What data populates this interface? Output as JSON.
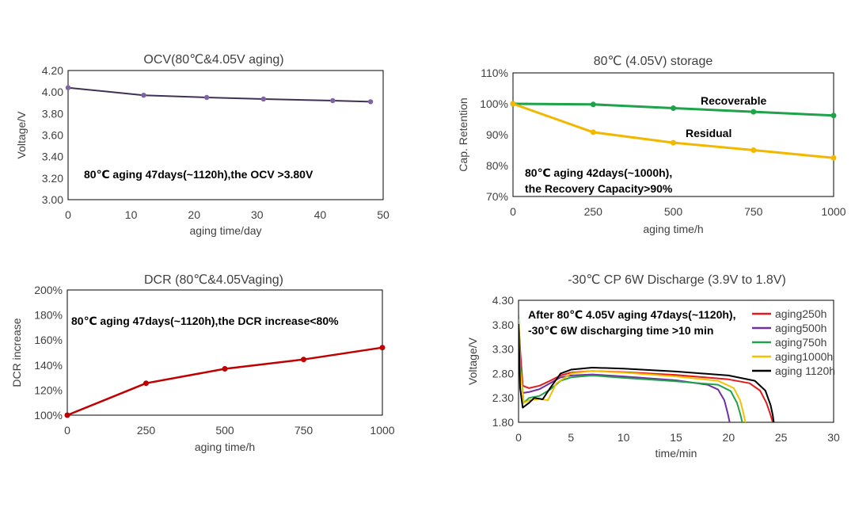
{
  "colors": {
    "ocv": "#403152",
    "ocv_marker": "#8064A2",
    "recoverable": "#1FA34A",
    "residual": "#F2B800",
    "dcr": "#C00000",
    "aging250h": "#E41A1C",
    "aging500h": "#7030A0",
    "aging750h": "#1FA34A",
    "aging1000h": "#F2C200",
    "aging1120h": "#000000"
  },
  "chart_data": [
    {
      "id": "ocv",
      "type": "line",
      "title": "OCV(80℃&4.05V aging)",
      "xlabel": "aging time/day",
      "ylabel": "Voltage/V",
      "xlim": [
        0,
        50
      ],
      "ylim": [
        3.0,
        4.2
      ],
      "xticks": [
        "0",
        "10",
        "20",
        "30",
        "40",
        "50"
      ],
      "yticks": [
        "3.00",
        "3.20",
        "3.40",
        "3.60",
        "3.80",
        "4.00",
        "4.20"
      ],
      "annotation": "80℃ aging 47days(~1120h),the OCV >3.80V",
      "series": [
        {
          "x": [
            0,
            12,
            22,
            31,
            42,
            48
          ],
          "y": [
            4.04,
            3.97,
            3.95,
            3.935,
            3.92,
            3.91
          ]
        }
      ]
    },
    {
      "id": "storage",
      "type": "line",
      "title": "80℃ (4.05V) storage",
      "xlabel": "aging time/h",
      "ylabel": "Cap. Retention",
      "xlim": [
        0,
        1000
      ],
      "ylim": [
        70,
        110
      ],
      "xticks": [
        "0",
        "250",
        "500",
        "750",
        "1000"
      ],
      "yticks": [
        "70%",
        "80%",
        "90%",
        "100%",
        "110%"
      ],
      "annotation_lines": [
        "80℃ aging 42days(~1000h),",
        "the Recovery Capacity>90%"
      ],
      "series": [
        {
          "name": "Recoverable",
          "x": [
            0,
            250,
            500,
            750,
            1000
          ],
          "y": [
            100,
            99.8,
            98.6,
            97.4,
            96.2
          ]
        },
        {
          "name": "Residual",
          "x": [
            0,
            250,
            500,
            750,
            1000
          ],
          "y": [
            100,
            90.8,
            87.4,
            85.0,
            82.5
          ]
        }
      ]
    },
    {
      "id": "dcr",
      "type": "line",
      "title": "DCR (80℃&4.05Vaging)",
      "xlabel": "aging time/h",
      "ylabel": "DCR increase",
      "xlim": [
        0,
        1000
      ],
      "ylim": [
        100,
        200
      ],
      "xticks": [
        "0",
        "250",
        "500",
        "750",
        "1000"
      ],
      "yticks": [
        "100%",
        "120%",
        "140%",
        "160%",
        "180%",
        "200%"
      ],
      "annotation": "80℃ aging 47days(~1120h),the DCR increase<80%",
      "series": [
        {
          "x": [
            0,
            250,
            500,
            750,
            1000
          ],
          "y": [
            100,
            125.5,
            137,
            144.5,
            154
          ]
        }
      ]
    },
    {
      "id": "discharge",
      "type": "line",
      "title": "-30℃ CP 6W Discharge (3.9V to 1.8V)",
      "xlabel": "time/min",
      "ylabel": "Voltage/V",
      "xlim": [
        0,
        30
      ],
      "ylim": [
        1.8,
        4.3
      ],
      "xticks": [
        "0",
        "5",
        "10",
        "15",
        "20",
        "25",
        "30"
      ],
      "yticks": [
        "1.80",
        "2.30",
        "2.80",
        "3.30",
        "3.80",
        "4.30"
      ],
      "annotation_lines": [
        "After 80℃ 4.05V aging 47days(~1120h),",
        "-30℃ 6W discharging time >10 min"
      ],
      "series": [
        {
          "name": "aging250h",
          "x": [
            0,
            0.15,
            0.4,
            1,
            2,
            3,
            4,
            5,
            7,
            10,
            15,
            20,
            22,
            23,
            23.6,
            24.0,
            24.2
          ],
          "y": [
            3.9,
            3.3,
            2.55,
            2.5,
            2.55,
            2.65,
            2.76,
            2.82,
            2.85,
            2.83,
            2.77,
            2.68,
            2.6,
            2.45,
            2.2,
            1.95,
            1.8
          ]
        },
        {
          "name": "aging500h",
          "x": [
            0,
            0.15,
            0.4,
            1,
            2,
            3,
            4,
            5,
            7,
            10,
            15,
            18,
            19,
            19.6,
            19.9,
            20.1
          ],
          "y": [
            3.9,
            3.0,
            2.4,
            2.42,
            2.48,
            2.6,
            2.72,
            2.76,
            2.78,
            2.74,
            2.66,
            2.57,
            2.47,
            2.25,
            2.0,
            1.8
          ]
        },
        {
          "name": "aging750h",
          "x": [
            0,
            0.15,
            0.5,
            1,
            2,
            3,
            4,
            5,
            7,
            10,
            15,
            19,
            20.2,
            20.8,
            21.1,
            21.3
          ],
          "y": [
            4.0,
            3.0,
            2.2,
            2.3,
            2.34,
            2.47,
            2.65,
            2.72,
            2.76,
            2.71,
            2.64,
            2.57,
            2.44,
            2.2,
            1.98,
            1.8
          ]
        },
        {
          "name": "aging1000h",
          "x": [
            0,
            0.15,
            0.5,
            1,
            2,
            2.8,
            3.6,
            5,
            7,
            10,
            15,
            19,
            20.5,
            21.1,
            21.4,
            21.6
          ],
          "y": [
            3.9,
            2.9,
            2.2,
            2.25,
            2.28,
            2.25,
            2.6,
            2.8,
            2.85,
            2.82,
            2.74,
            2.65,
            2.5,
            2.25,
            2.0,
            1.8
          ]
        },
        {
          "name": "aging 1120h",
          "x": [
            0,
            0.15,
            0.4,
            1,
            1.5,
            2.3,
            3,
            4,
            5,
            7,
            10,
            15,
            20,
            22.5,
            23.5,
            24.0,
            24.2,
            24.3
          ],
          "y": [
            3.8,
            2.5,
            2.1,
            2.2,
            2.3,
            2.27,
            2.5,
            2.8,
            2.88,
            2.92,
            2.9,
            2.84,
            2.76,
            2.65,
            2.45,
            2.15,
            1.95,
            1.8
          ]
        }
      ]
    }
  ]
}
